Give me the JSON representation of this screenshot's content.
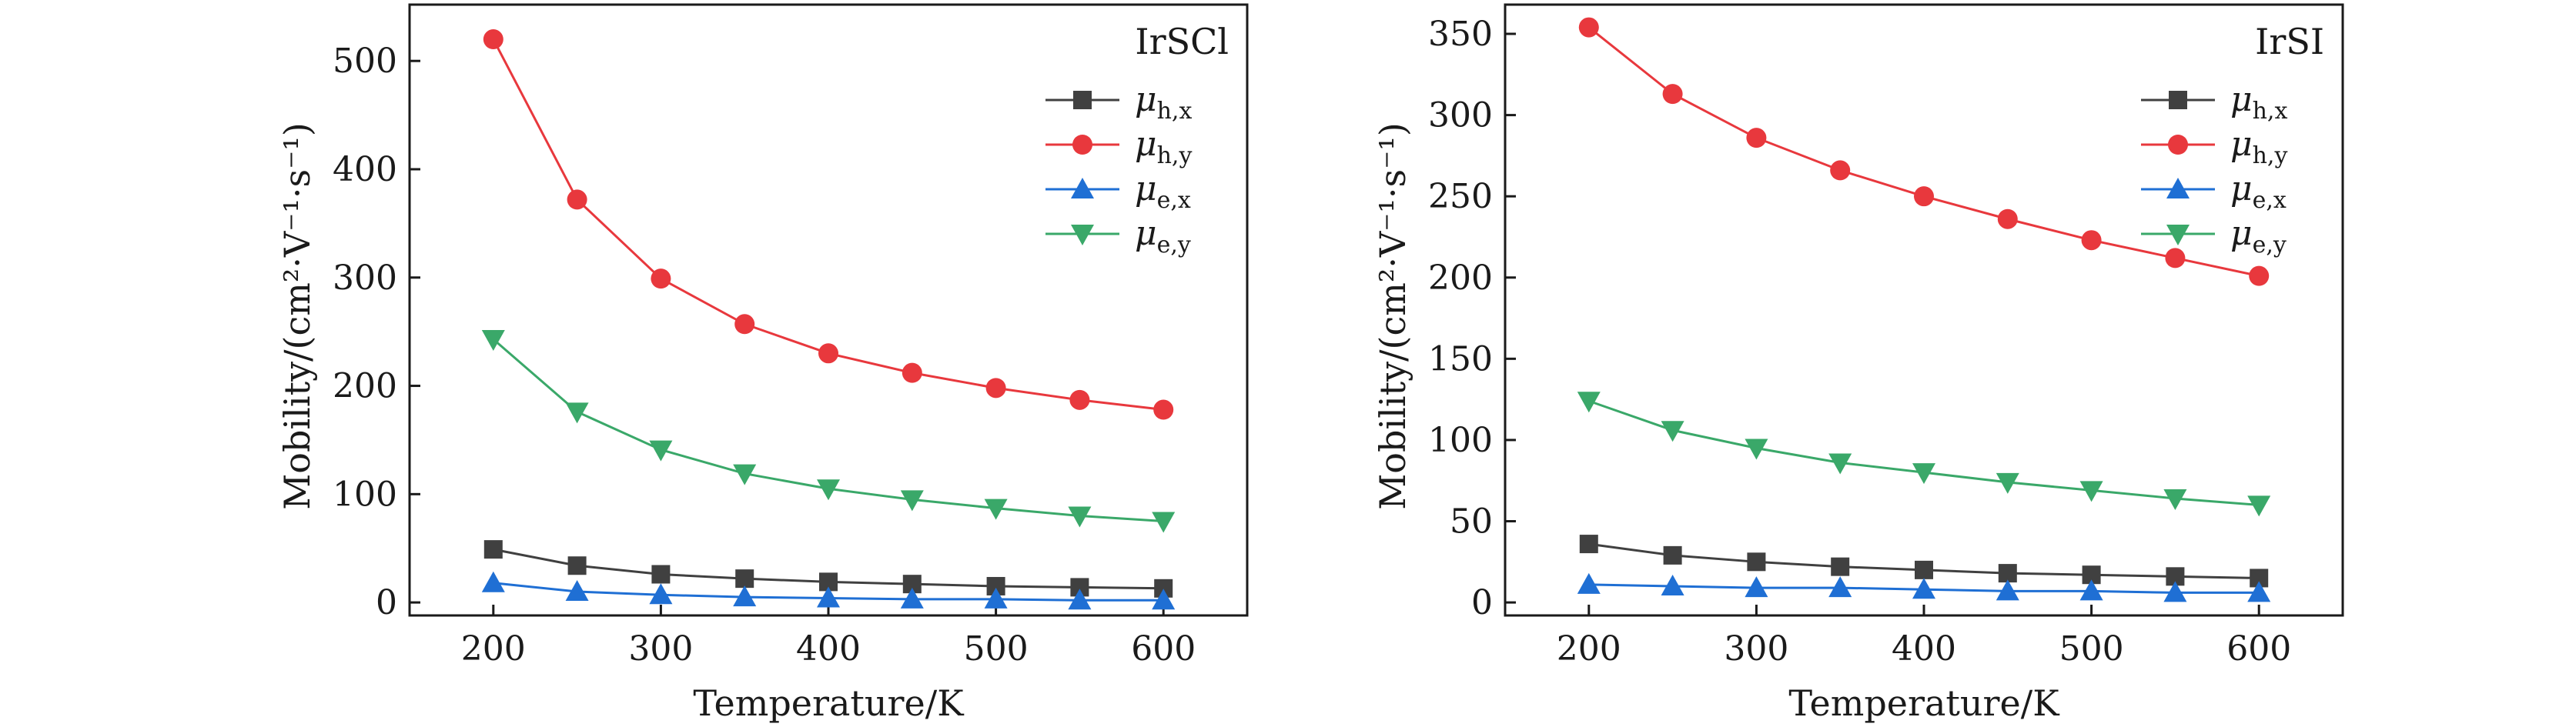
{
  "chart_data": [
    {
      "type": "line",
      "title": "IrSCl",
      "xlabel": "Temperature/K",
      "ylabel": "Mobility/(cm²·V⁻¹·s⁻¹)",
      "xlim": [
        150,
        650
      ],
      "ylim": [
        -12,
        552
      ],
      "xticks": [
        200,
        300,
        400,
        500,
        600
      ],
      "yticks": [
        0,
        100,
        200,
        300,
        400,
        500
      ],
      "x": [
        200,
        250,
        300,
        350,
        400,
        450,
        500,
        550,
        600
      ],
      "legend_position": "top-right",
      "series": [
        {
          "name": "μh,x",
          "base": "μ",
          "sub": "h,x",
          "color": "#404040",
          "marker": "square",
          "values": [
            49,
            34,
            26,
            22,
            19,
            17,
            15,
            14,
            13
          ]
        },
        {
          "name": "μh,y",
          "base": "μ",
          "sub": "h,y",
          "color": "#e8383d",
          "marker": "circle",
          "values": [
            520,
            372,
            299,
            257,
            230,
            212,
            198,
            187,
            178
          ]
        },
        {
          "name": "μe,x",
          "base": "μ",
          "sub": "e,x",
          "color": "#1f6fd4",
          "marker": "triangle-up",
          "values": [
            18,
            10,
            7,
            5,
            4,
            3,
            3,
            2,
            2
          ]
        },
        {
          "name": "μe,y",
          "base": "μ",
          "sub": "e,y",
          "color": "#3aa869",
          "marker": "triangle-down",
          "values": [
            243,
            176,
            141,
            119,
            105,
            95,
            87,
            80,
            75
          ]
        }
      ]
    },
    {
      "type": "line",
      "title": "IrSI",
      "xlabel": "Temperature/K",
      "ylabel": "Mobility/(cm²·V⁻¹·s⁻¹)",
      "xlim": [
        150,
        650
      ],
      "ylim": [
        -8,
        368
      ],
      "xticks": [
        200,
        300,
        400,
        500,
        600
      ],
      "yticks": [
        0,
        50,
        100,
        150,
        200,
        250,
        300,
        350
      ],
      "x": [
        200,
        250,
        300,
        350,
        400,
        450,
        500,
        550,
        600
      ],
      "legend_position": "top-right",
      "series": [
        {
          "name": "μh,x",
          "base": "μ",
          "sub": "h,x",
          "color": "#404040",
          "marker": "square",
          "values": [
            36,
            29,
            25,
            22,
            20,
            18,
            17,
            16,
            15
          ]
        },
        {
          "name": "μh,y",
          "base": "μ",
          "sub": "h,y",
          "color": "#e8383d",
          "marker": "circle",
          "values": [
            354,
            313,
            286,
            266,
            250,
            236,
            223,
            212,
            201
          ]
        },
        {
          "name": "μe,x",
          "base": "μ",
          "sub": "e,x",
          "color": "#1f6fd4",
          "marker": "triangle-up",
          "values": [
            11,
            10,
            9,
            9,
            8,
            7,
            7,
            6,
            6
          ]
        },
        {
          "name": "μe,y",
          "base": "μ",
          "sub": "e,y",
          "color": "#3aa869",
          "marker": "triangle-down",
          "values": [
            124,
            106,
            95,
            86,
            80,
            74,
            69,
            64,
            60
          ]
        }
      ]
    }
  ]
}
